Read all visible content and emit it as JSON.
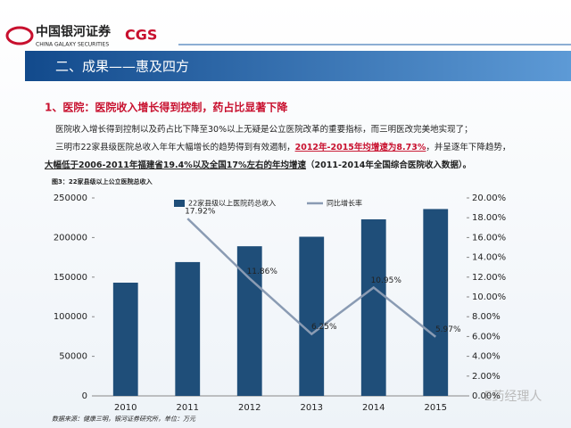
{
  "header": {
    "logo_cn": "中国银河证券",
    "logo_en": "CHINA GALAXY SECURITIES",
    "logo_mark": "CGS"
  },
  "banner": "二、成果——惠及四方",
  "subtitle": "1、医院：医院收入增长得到控制，药占比显著下降",
  "paragraphs": [
    {
      "segments": [
        "医院收入增长得到控制以及药占比下降至30%以上无疑是公立医院改革的重要指标，而三明医改完美地实现了；"
      ]
    },
    {
      "segments": [
        "三明市22家县级医院总收入年年大幅增长的趋势得到有效遏制，",
        "2012年-2015年均增速为8.73%",
        "，并呈逐年下降趋势，"
      ]
    },
    {
      "segments": [
        "大幅低于2006-2011年福建省19.4%以及全国17%左右的年均增速",
        "（2011-2014年全国综合医院收入数据）。"
      ]
    }
  ],
  "figure_caption": "图3：22家县级以上公立医院总收入",
  "source": "数据来源：健康三明，银河证券研究所，单位：万元",
  "watermark": "E药经理人",
  "chart_data": {
    "type": "bar_line",
    "categories": [
      "2010",
      "2011",
      "2012",
      "2013",
      "2014",
      "2015"
    ],
    "series": [
      {
        "name": "22家县级以上医院药总收入",
        "type": "bar",
        "color": "#1f4e79",
        "values": [
          143000,
          169000,
          189000,
          201000,
          223000,
          236000
        ]
      },
      {
        "name": "同比增长率",
        "type": "line",
        "axis": "y2",
        "color": "#8a9bb3",
        "values": [
          null,
          17.92,
          11.86,
          6.25,
          10.95,
          5.97
        ],
        "value_labels": [
          null,
          "17.92%",
          "11.86%",
          "6.25%",
          "10.95%",
          "5.97%"
        ]
      }
    ],
    "ylim": [
      0,
      250000
    ],
    "yticks": [
      0,
      50000,
      100000,
      150000,
      200000,
      250000
    ],
    "y2lim": [
      0,
      20
    ],
    "y2ticks": [
      {
        "value": 0,
        "label": "0.00%"
      },
      {
        "value": 2,
        "label": "2.00%"
      },
      {
        "value": 4,
        "label": "4.00%"
      },
      {
        "value": 6,
        "label": "6.00%"
      },
      {
        "value": 8,
        "label": "8.00%"
      },
      {
        "value": 10,
        "label": "10.00%"
      },
      {
        "value": 12,
        "label": "12.00%"
      },
      {
        "value": 14,
        "label": "14.00%"
      },
      {
        "value": 16,
        "label": "16.00%"
      },
      {
        "value": 18,
        "label": "18.00%"
      },
      {
        "value": 20,
        "label": "20.00%"
      }
    ],
    "grid": false
  }
}
